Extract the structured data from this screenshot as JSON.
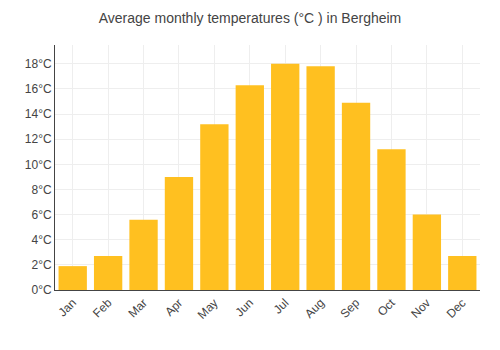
{
  "chart_data": {
    "type": "bar",
    "title": "Average monthly temperatures (°C ) in Bergheim",
    "categories": [
      "Jan",
      "Feb",
      "Mar",
      "Apr",
      "May",
      "Jun",
      "Jul",
      "Aug",
      "Sep",
      "Oct",
      "Nov",
      "Dec"
    ],
    "values": [
      1.9,
      2.7,
      5.6,
      9.0,
      13.2,
      16.3,
      18.0,
      17.8,
      14.9,
      11.2,
      6.0,
      2.7
    ],
    "color": "#FFC020",
    "ylim": [
      0,
      19.5
    ],
    "yticks": [
      {
        "value": 0,
        "label": "0°C"
      },
      {
        "value": 2,
        "label": "2°C"
      },
      {
        "value": 4,
        "label": "4°C"
      },
      {
        "value": 6,
        "label": "6°C"
      },
      {
        "value": 8,
        "label": "8°C"
      },
      {
        "value": 10,
        "label": "10°C"
      },
      {
        "value": 12,
        "label": "12°C"
      },
      {
        "value": 14,
        "label": "14°C"
      },
      {
        "value": 16,
        "label": "16°C"
      },
      {
        "value": 18,
        "label": "18°C"
      }
    ],
    "grid": true
  }
}
